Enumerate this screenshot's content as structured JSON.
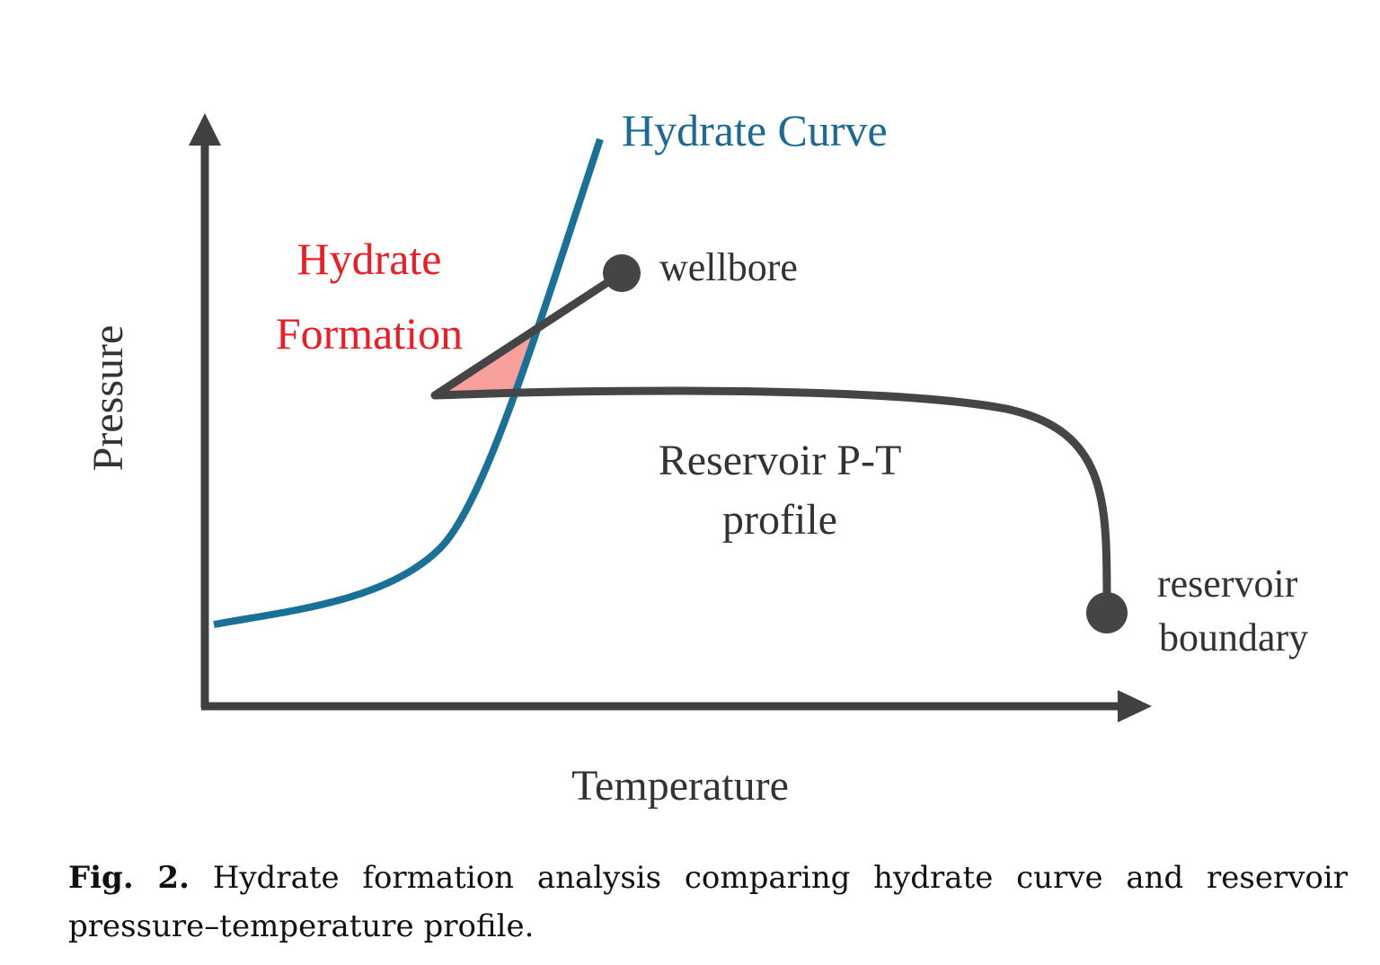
{
  "diagram": {
    "y_axis_label": "Pressure",
    "x_axis_label": "Temperature",
    "hydrate_curve_label": "Hydrate Curve",
    "hydrate_formation_label_line1": "Hydrate",
    "hydrate_formation_label_line2": "Formation",
    "wellbore_label": "wellbore",
    "profile_label_line1": "Reservoir P-T",
    "profile_label_line2": "profile",
    "reservoir_boundary_line1": "reservoir",
    "reservoir_boundary_line2": "boundary",
    "colors": {
      "axis": "#404040",
      "hydrate_curve": "#1a7197",
      "profile": "#454545",
      "formation_text": "#ee1c24",
      "formation_fill": "#f7a09c"
    }
  },
  "caption": {
    "label": "Fig. 2.",
    "text": "Hydrate formation analysis comparing hydrate curve and reservoir pressure–temperature profile."
  }
}
